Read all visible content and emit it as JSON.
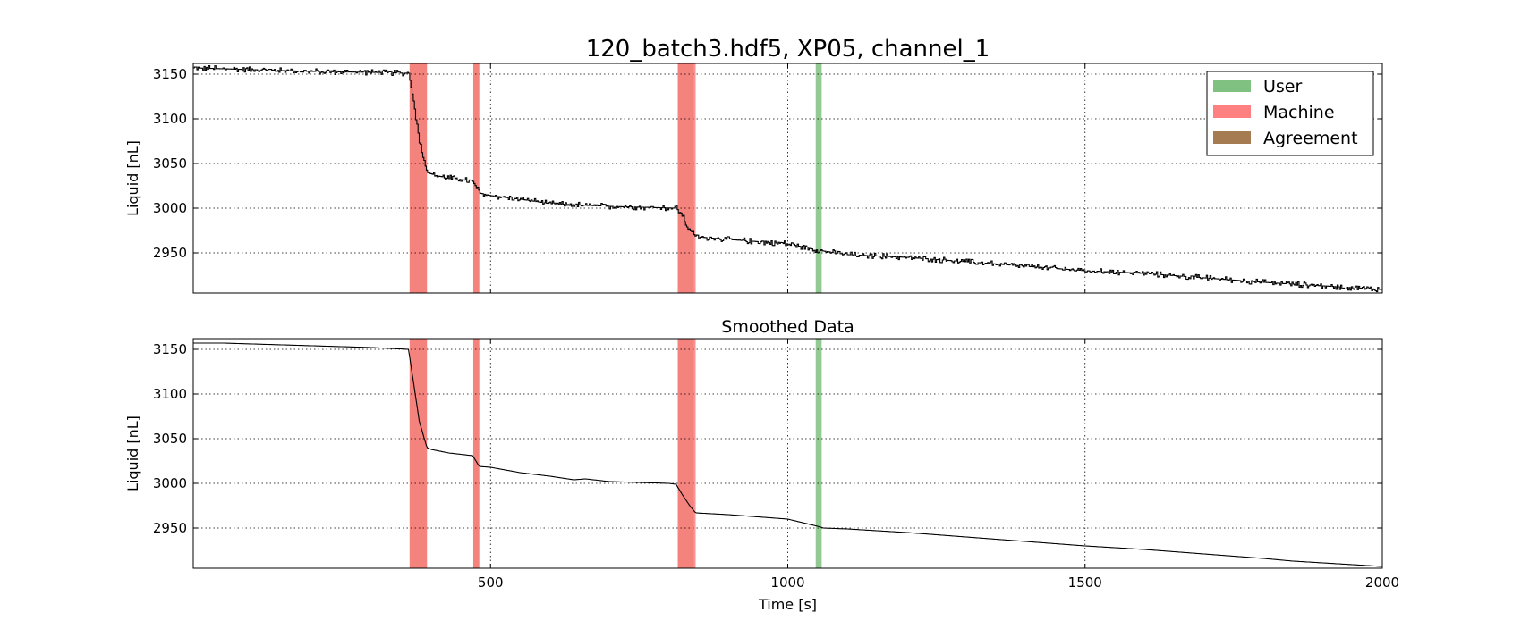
{
  "chart_data": {
    "type": "line",
    "title": "120_batch3.hdf5, XP05, channel_1",
    "xlim": [
      0,
      2000
    ],
    "ylim": [
      2905,
      3162
    ],
    "x_ticks": [
      500,
      1000,
      1500,
      2000
    ],
    "y_ticks": [
      2950,
      3000,
      3050,
      3100,
      3150
    ],
    "grid": true,
    "xlabel": "Time [s]",
    "legend": {
      "placement": "top-right",
      "entries": [
        {
          "label": "User",
          "color": "#80c080"
        },
        {
          "label": "Machine",
          "color": "#ff8080"
        },
        {
          "label": "Agreement",
          "color": "#a57c52"
        }
      ]
    },
    "regions": [
      {
        "kind": "Agreement",
        "x": [
          364,
          393
        ],
        "color": "#a57c52"
      },
      {
        "kind": "Machine",
        "x": [
          364,
          393
        ],
        "color": "#ff8080"
      },
      {
        "kind": "Agreement",
        "x": [
          471,
          481
        ],
        "color": "#a57c52"
      },
      {
        "kind": "Machine",
        "x": [
          471,
          481
        ],
        "color": "#ff8080"
      },
      {
        "kind": "Agreement",
        "x": [
          815,
          842
        ],
        "color": "#a57c52"
      },
      {
        "kind": "Machine",
        "x": [
          815,
          845
        ],
        "color": "#ff8080"
      },
      {
        "kind": "User",
        "x": [
          1047,
          1057
        ],
        "color": "#80c080"
      }
    ],
    "panels": [
      {
        "name": "raw",
        "title": "",
        "ylabel": "Liquid [nL]",
        "noise": 3,
        "series": [
          {
            "name": "",
            "x": [
              0,
              100,
              200,
              300,
              362,
              370,
              380,
              393,
              410,
              440,
              470,
              481,
              500,
              550,
              600,
              700,
              812,
              822,
              830,
              845,
              900,
              1000,
              1050,
              1100,
              1200,
              1300,
              1400,
              1500,
              1600,
              1700,
              1800,
              1900,
              2000
            ],
            "y": [
              3157,
              3155,
              3153,
              3152,
              3151,
              3120,
              3075,
              3040,
              3036,
              3033,
              3030,
              3017,
              3014,
              3010,
              3005,
              3002,
              3000,
              2992,
              2980,
              2968,
              2965,
              2960,
              2953,
              2948,
              2945,
              2940,
              2935,
              2930,
              2927,
              2922,
              2917,
              2913,
              2909
            ]
          }
        ]
      },
      {
        "name": "smoothed",
        "title": "Smoothed Data",
        "ylabel": "Liquid [nL]",
        "noise": 0,
        "series": [
          {
            "name": "",
            "x": [
              0,
              50,
              100,
              150,
              200,
              250,
              300,
              362,
              370,
              380,
              393,
              400,
              430,
              470,
              481,
              500,
              550,
              600,
              640,
              660,
              700,
              800,
              812,
              822,
              835,
              845,
              900,
              1000,
              1050,
              1060,
              1100,
              1200,
              1300,
              1400,
              1500,
              1600,
              1700,
              1800,
              1850,
              1900,
              2000
            ],
            "y": [
              3157,
              3157,
              3156,
              3155,
              3154,
              3153,
              3152,
              3150,
              3115,
              3070,
              3040,
              3038,
              3034,
              3031,
              3019,
              3018,
              3012,
              3008,
              3004,
              3005,
              3002,
              3000,
              2999,
              2988,
              2975,
              2967,
              2965,
              2960,
              2952,
              2950,
              2949,
              2945,
              2940,
              2935,
              2930,
              2926,
              2921,
              2916,
              2913,
              2911,
              2907
            ]
          }
        ]
      }
    ]
  }
}
